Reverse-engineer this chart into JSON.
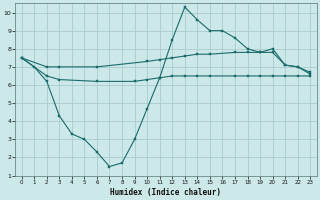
{
  "xlabel": "Humidex (Indice chaleur)",
  "bg_color": "#cce8e8",
  "grid_color": "#aacccc",
  "line_color": "#1a6b6b",
  "xlim": [
    -0.5,
    23.5
  ],
  "ylim": [
    1,
    10.5
  ],
  "xticks": [
    0,
    1,
    2,
    3,
    4,
    5,
    6,
    7,
    8,
    9,
    10,
    11,
    12,
    13,
    14,
    15,
    16,
    17,
    18,
    19,
    20,
    21,
    22,
    23
  ],
  "yticks": [
    1,
    2,
    3,
    4,
    5,
    6,
    7,
    8,
    9,
    10
  ],
  "line1_x": [
    0,
    1,
    2,
    3,
    4,
    5,
    6,
    7,
    8,
    9,
    10,
    11,
    12,
    13,
    14,
    15,
    16,
    17,
    18,
    19,
    20,
    21,
    22,
    23
  ],
  "line1_y": [
    7.5,
    7.0,
    6.2,
    4.3,
    3.3,
    3.0,
    2.3,
    1.5,
    1.7,
    3.0,
    4.7,
    6.4,
    8.5,
    10.3,
    9.6,
    9.0,
    9.0,
    8.6,
    8.0,
    7.8,
    8.0,
    7.1,
    7.0,
    6.6
  ],
  "line2_x": [
    0,
    2,
    3,
    6,
    10,
    11,
    12,
    13,
    14,
    15,
    17,
    18,
    19,
    20,
    21,
    22,
    23
  ],
  "line2_y": [
    7.5,
    7.0,
    7.0,
    7.0,
    7.3,
    7.4,
    7.5,
    7.6,
    7.7,
    7.7,
    7.8,
    7.8,
    7.8,
    7.8,
    7.1,
    7.0,
    6.7
  ],
  "line3_x": [
    0,
    2,
    3,
    6,
    9,
    10,
    11,
    12,
    13,
    14,
    15,
    17,
    18,
    19,
    20,
    21,
    22,
    23
  ],
  "line3_y": [
    7.5,
    6.5,
    6.3,
    6.2,
    6.2,
    6.3,
    6.4,
    6.5,
    6.5,
    6.5,
    6.5,
    6.5,
    6.5,
    6.5,
    6.5,
    6.5,
    6.5,
    6.5
  ]
}
